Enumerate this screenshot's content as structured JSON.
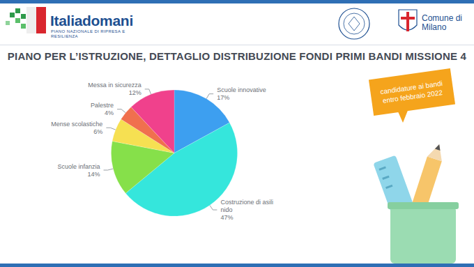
{
  "header": {
    "logo": "Italiadomani",
    "logo_subtitle": "PIANO NAZIONALE DI RIPRESA E RESILIENZA",
    "municipality": "Comune di Milano"
  },
  "callout": "candidature ai bandi entro febbraio 2022",
  "chart_data": {
    "type": "pie",
    "title": "PIANO PER L’ISTRUZIONE, DETTAGLIO DISTRIBUZIONE FONDI PRIMI BANDI MISSIONE 4",
    "categories": [
      "Scuole innovative",
      "Costruzione di asili nido",
      "Scuole infanzia",
      "Mense scolastiche",
      "Palestre",
      "Messa in sicurezza"
    ],
    "values": [
      17,
      47,
      14,
      6,
      4,
      12
    ],
    "value_labels": [
      "17%",
      "47%",
      "14%",
      "6%",
      "4%",
      "12%"
    ],
    "colors": [
      "#3d9ff0",
      "#35e6dc",
      "#86e04a",
      "#f6e052",
      "#f0704e",
      "#f0418c"
    ],
    "data_labels": true
  }
}
